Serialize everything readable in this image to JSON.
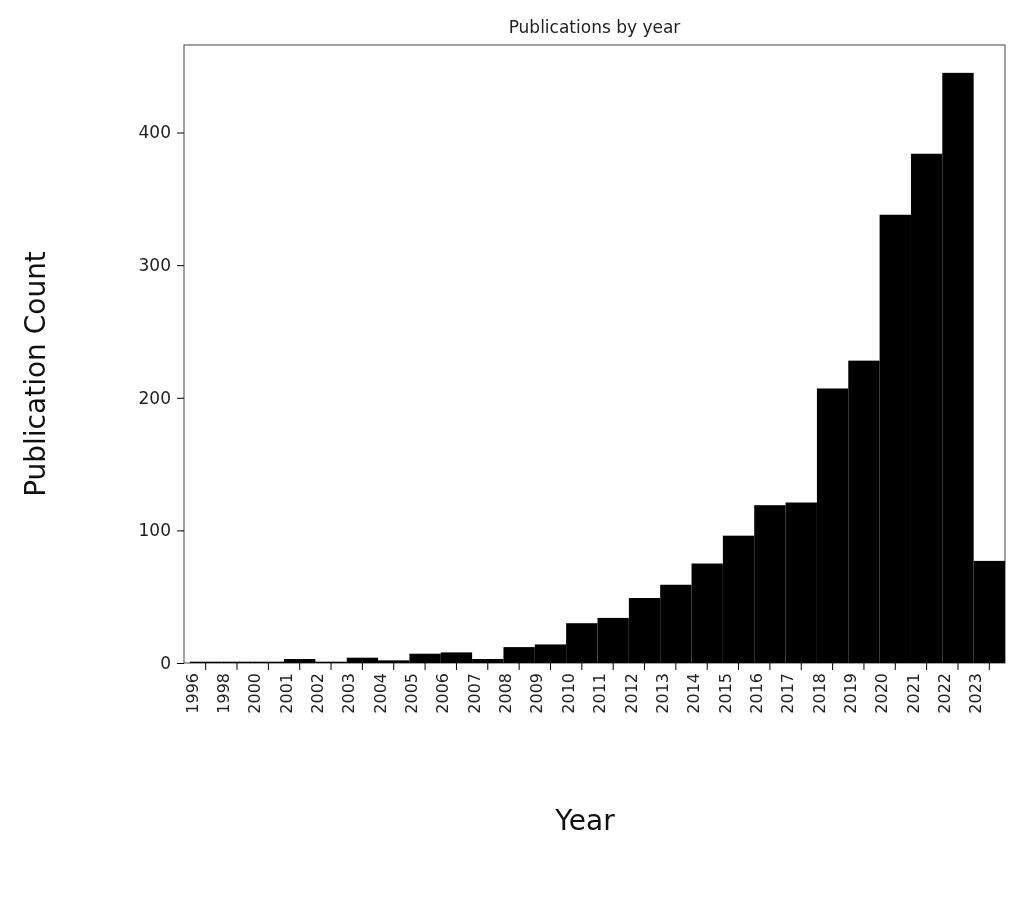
{
  "chart_data": {
    "type": "bar",
    "title": "Publications by year",
    "xlabel": "Year",
    "ylabel": "Publication Count",
    "categories": [
      "1996",
      "1998",
      "2000",
      "2001",
      "2002",
      "2003",
      "2004",
      "2005",
      "2006",
      "2007",
      "2008",
      "2009",
      "2010",
      "2011",
      "2012",
      "2013",
      "2014",
      "2015",
      "2016",
      "2017",
      "2018",
      "2019",
      "2020",
      "2021",
      "2022",
      "2023"
    ],
    "values": [
      1,
      1,
      1,
      3,
      1,
      4,
      2,
      7,
      8,
      3,
      12,
      14,
      30,
      34,
      49,
      59,
      75,
      96,
      119,
      121,
      207,
      228,
      338,
      384,
      445,
      77
    ],
    "color": "#000000",
    "ylim": [
      0,
      466
    ],
    "yticks": [
      0,
      100,
      200,
      300,
      400
    ],
    "grid": false
  }
}
